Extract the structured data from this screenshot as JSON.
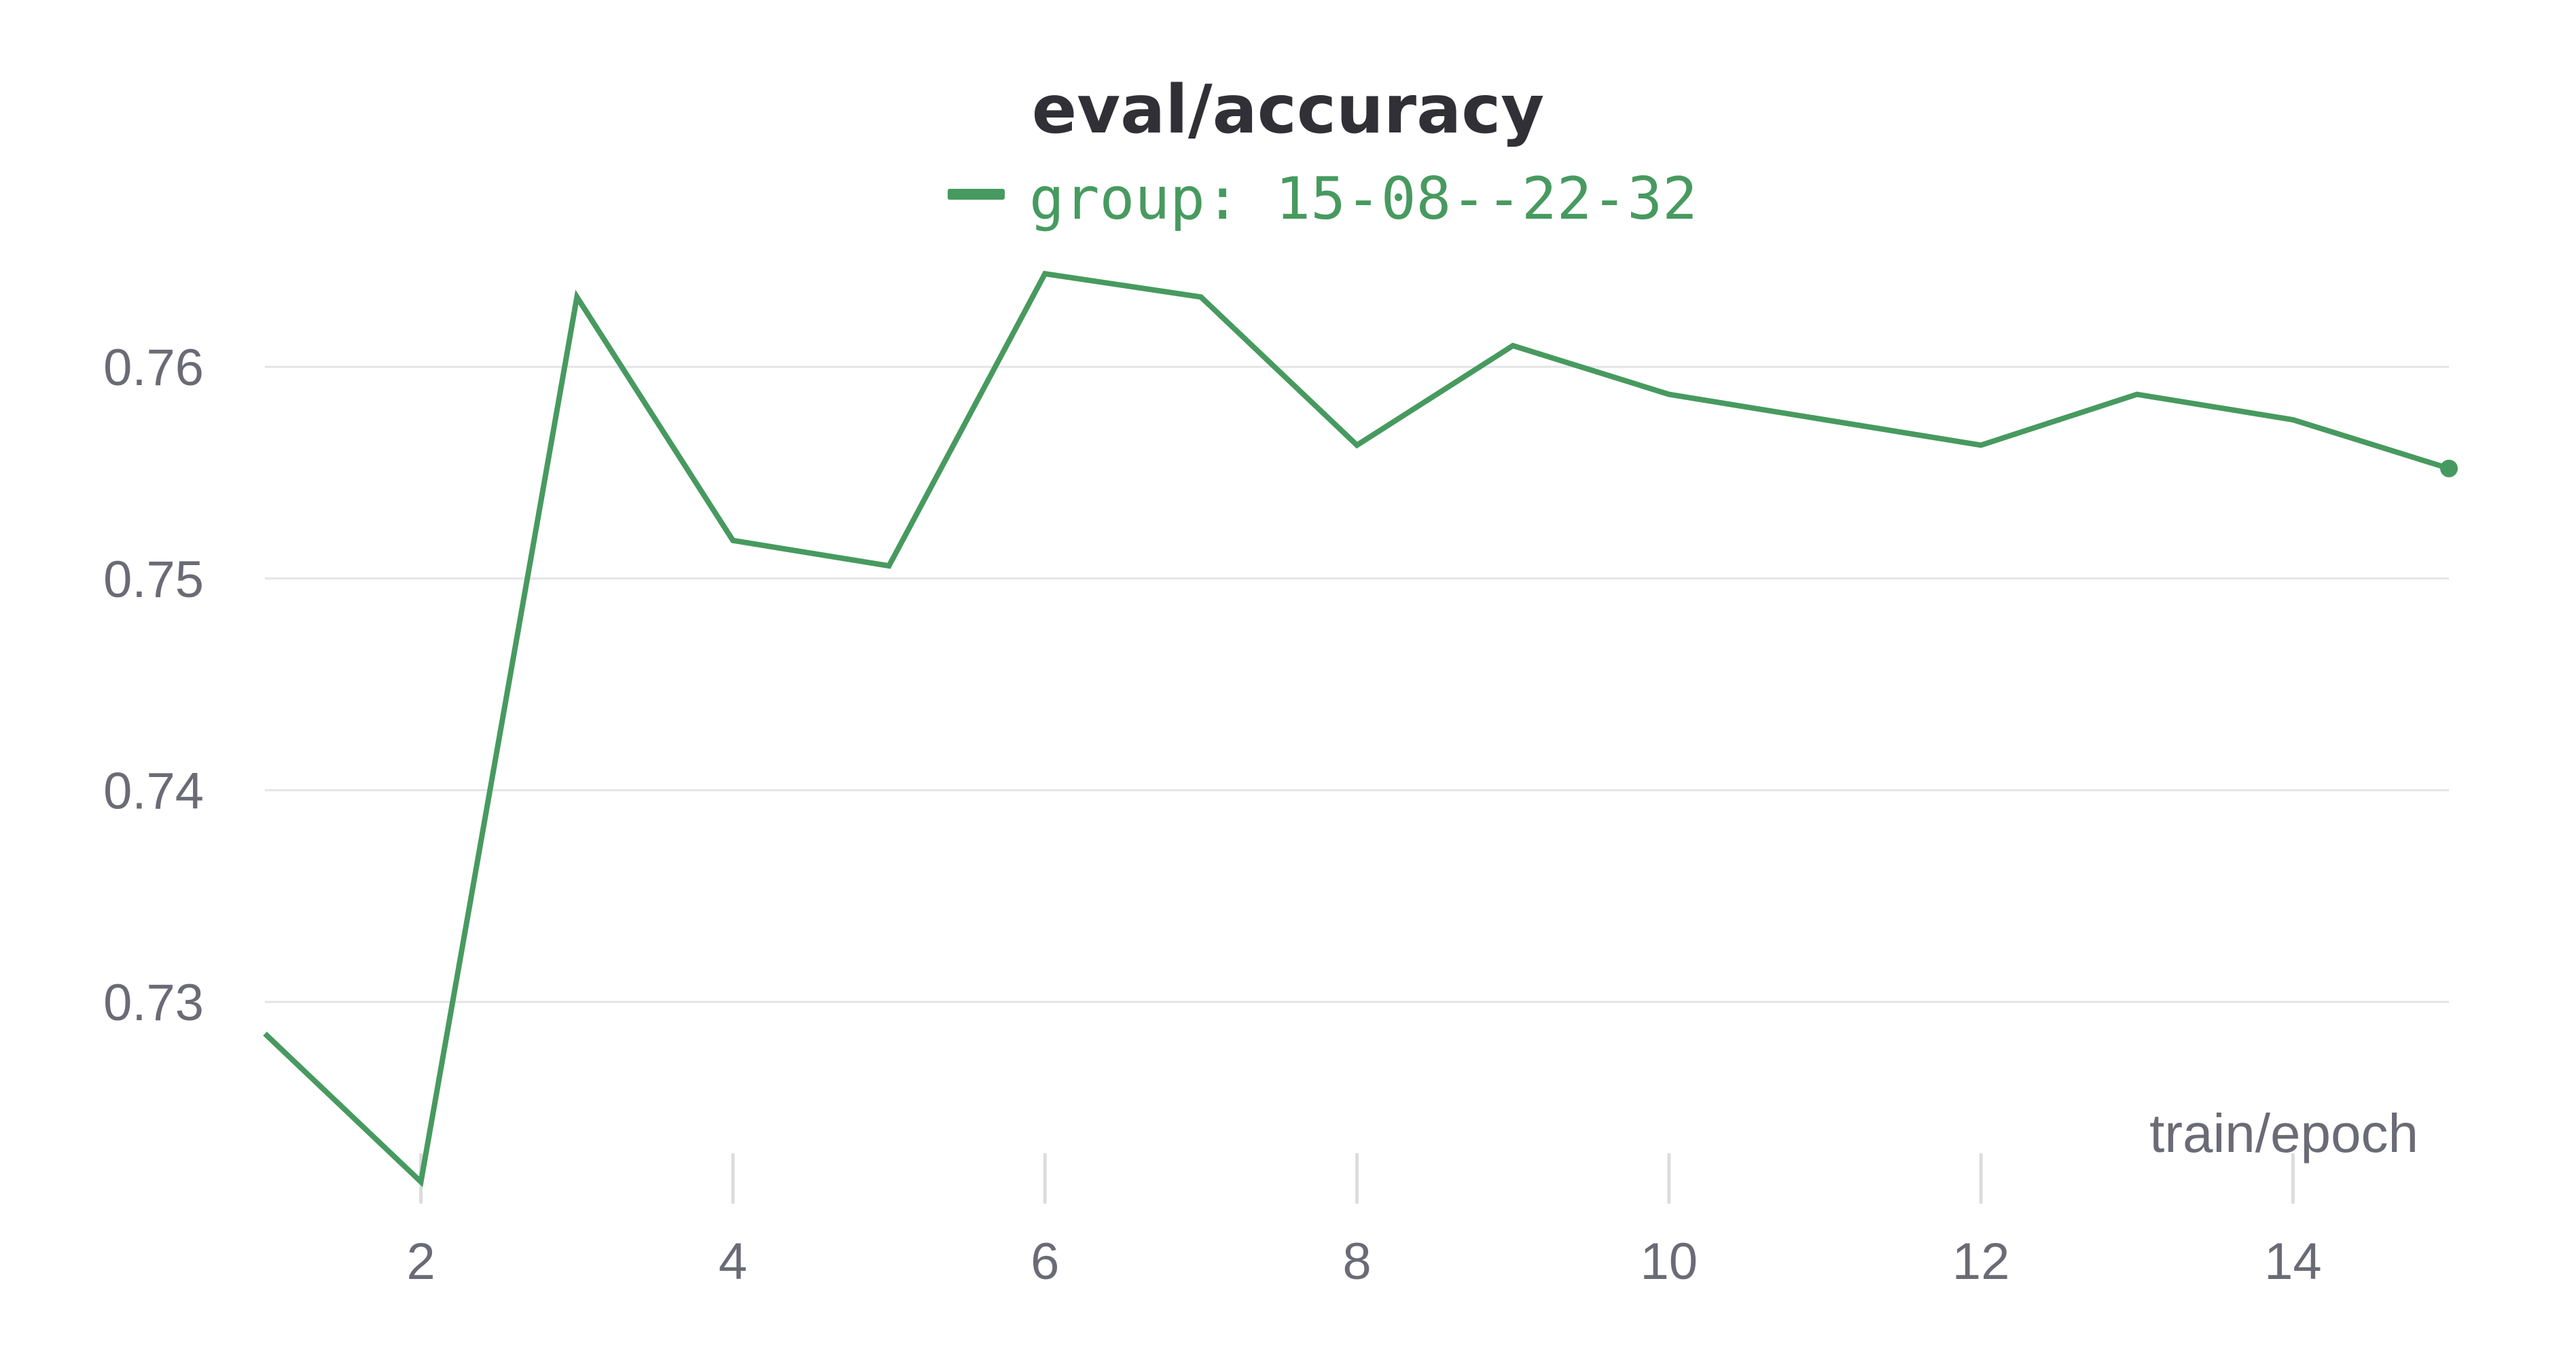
{
  "chart_data": {
    "type": "line",
    "title": "eval/accuracy",
    "xlabel": "train/epoch",
    "ylabel": "",
    "xlim": [
      1,
      15
    ],
    "ylim": [
      0.7215,
      0.7661
    ],
    "x_ticks": [
      2,
      4,
      6,
      8,
      10,
      12,
      14
    ],
    "y_ticks": [
      0.73,
      0.74,
      0.75,
      0.76
    ],
    "y_tick_labels": [
      "0.73",
      "0.74",
      "0.75",
      "0.76"
    ],
    "grid": "horizontal",
    "legend": {
      "placement": "top-center",
      "entries": [
        "group: 15-08--22-32"
      ]
    },
    "series": [
      {
        "name": "group: 15-08--22-32",
        "color": "#479a5f",
        "x": [
          1,
          2,
          3,
          4,
          5,
          6,
          7,
          8,
          9,
          10,
          11,
          12,
          13,
          14,
          15
        ],
        "y": [
          0.7285,
          0.7215,
          0.7633,
          0.7518,
          0.7506,
          0.7644,
          0.7633,
          0.7563,
          0.761,
          0.7587,
          0.7575,
          0.7563,
          0.7587,
          0.7575,
          0.7552
        ]
      }
    ]
  }
}
